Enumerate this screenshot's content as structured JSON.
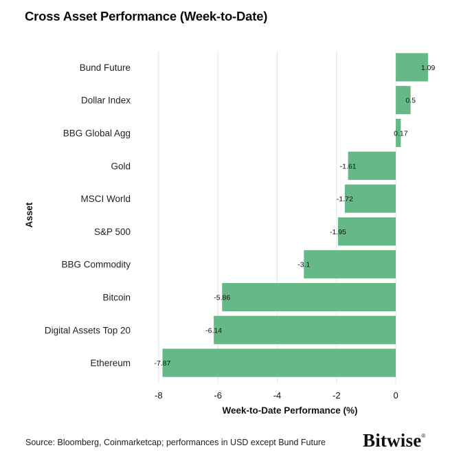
{
  "title": "Cross Asset Performance (Week-to-Date)",
  "source": "Source: Bloomberg, Coinmarketcap; performances in USD except Bund Future",
  "logo": "Bitwise",
  "logo_mark": "®",
  "colors": {
    "bar": "#66b987",
    "grid": "#e3e3e3",
    "text": "#111111"
  },
  "chart_data": {
    "type": "bar",
    "orientation": "horizontal",
    "categories": [
      "Bund Future",
      "Dollar Index",
      "BBG Global Agg",
      "Gold",
      "MSCI World",
      "S&P 500",
      "BBG Commodity",
      "Bitcoin",
      "Digital Assets Top 20",
      "Ethereum"
    ],
    "values": [
      1.09,
      0.5,
      0.17,
      -1.61,
      -1.72,
      -1.95,
      -3.1,
      -5.86,
      -6.14,
      -7.87
    ],
    "value_labels": [
      "1.09",
      "0.5",
      "0.17",
      "-1.61",
      "-1.72",
      "-1.95",
      "-3.1",
      "-5.86",
      "-6.14",
      "-7.87"
    ],
    "xlabel": "Week-to-Date Performance (%)",
    "ylabel": "Asset",
    "xlim": [
      -8.6,
      1.25
    ],
    "xticks": [
      -8,
      -6,
      -4,
      -2,
      0
    ],
    "xtick_labels": [
      "-8",
      "-6",
      "-4",
      "-2",
      "0"
    ],
    "grid": "vertical"
  }
}
